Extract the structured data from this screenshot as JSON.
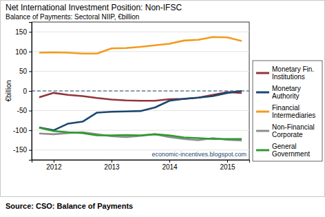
{
  "chart_data": {
    "type": "line",
    "title": "Net International Investment Position: Non-IFSC",
    "subtitle": "Balance of Payments: Sectoral NIIP, €billion",
    "y_label": "€billion",
    "annotations": [
      "economic-incentives.blogspot.com",
      "Source: CSO: Balance of Payments"
    ],
    "x": [
      2011.75,
      2012,
      2012.25,
      2012.5,
      2012.75,
      2013,
      2013.25,
      2013.5,
      2013.75,
      2014,
      2014.25,
      2014.5,
      2014.75,
      2015,
      2015.25
    ],
    "series": [
      {
        "name": "Monetary Fin. Institutions",
        "color": "#90353b",
        "values": [
          -16,
          -5,
          -10,
          -13,
          -18,
          -22,
          -24,
          -25,
          -25,
          -21,
          -20,
          -17,
          -10,
          -3,
          -5
        ]
      },
      {
        "name": "Monetary Authority",
        "color": "#1a476f",
        "values": [
          -93,
          -100,
          -83,
          -78,
          -55,
          -53,
          -52,
          -51,
          -42,
          -25,
          -20,
          -17,
          -13,
          -5,
          0
        ]
      },
      {
        "name": "Financial Intermediaries",
        "color": "#f39a1e",
        "values": [
          97,
          98,
          97,
          95,
          95,
          108,
          109,
          112,
          116,
          120,
          128,
          130,
          137,
          136,
          127
        ]
      },
      {
        "name": "Non-Financial Corporate",
        "color": "#8e8e8e",
        "values": [
          -108,
          -110,
          -107,
          -105,
          -110,
          -115,
          -117,
          -114,
          -110,
          -117,
          -122,
          -125,
          -120,
          -124,
          -126
        ]
      },
      {
        "name": "General Government",
        "color": "#2e9a2e",
        "values": [
          -93,
          -102,
          -105,
          -107,
          -113,
          -113,
          -112,
          -113,
          -110,
          -113,
          -118,
          -120,
          -122,
          -122,
          -122
        ]
      }
    ],
    "xlim": [
      2011.62,
      2015.38
    ],
    "xticks": [
      2012,
      2013,
      2014,
      2015
    ],
    "ylim": [
      -175,
      175
    ],
    "yticks": [
      -150,
      -100,
      -50,
      0,
      50,
      100,
      150
    ],
    "reference_line": 0,
    "grid": true,
    "legend": "right"
  }
}
